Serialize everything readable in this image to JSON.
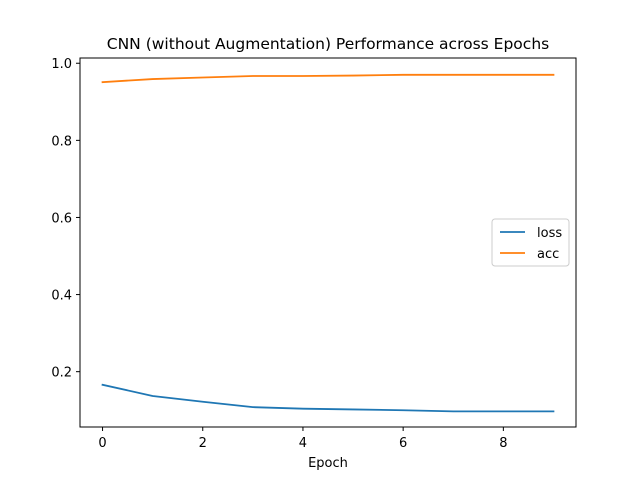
{
  "chart_data": {
    "type": "line",
    "title": "CNN (without Augmentation) Performance across Epochs",
    "xlabel": "Epoch",
    "ylabel": "",
    "x": [
      0,
      1,
      2,
      3,
      4,
      5,
      6,
      7,
      8,
      9
    ],
    "xlim": [
      -0.45,
      9.45
    ],
    "ylim": [
      0.0565,
      1.0136
    ],
    "xticks": [
      0,
      2,
      4,
      6,
      8
    ],
    "xtick_labels": [
      "0",
      "2",
      "4",
      "6",
      "8"
    ],
    "yticks": [
      0.2,
      0.4,
      0.6,
      0.8,
      1.0
    ],
    "ytick_labels": [
      "0.2",
      "0.4",
      "0.6",
      "0.8",
      "1.0"
    ],
    "grid": false,
    "legend_position": "center-right",
    "series": [
      {
        "name": "loss",
        "color": "#1f77b4",
        "values": [
          0.166,
          0.137,
          0.122,
          0.108,
          0.104,
          0.102,
          0.1,
          0.097,
          0.097,
          0.097
        ]
      },
      {
        "name": "acc",
        "color": "#ff7f0e",
        "values": [
          0.951,
          0.959,
          0.963,
          0.967,
          0.967,
          0.968,
          0.97,
          0.97,
          0.97,
          0.97
        ]
      }
    ]
  }
}
